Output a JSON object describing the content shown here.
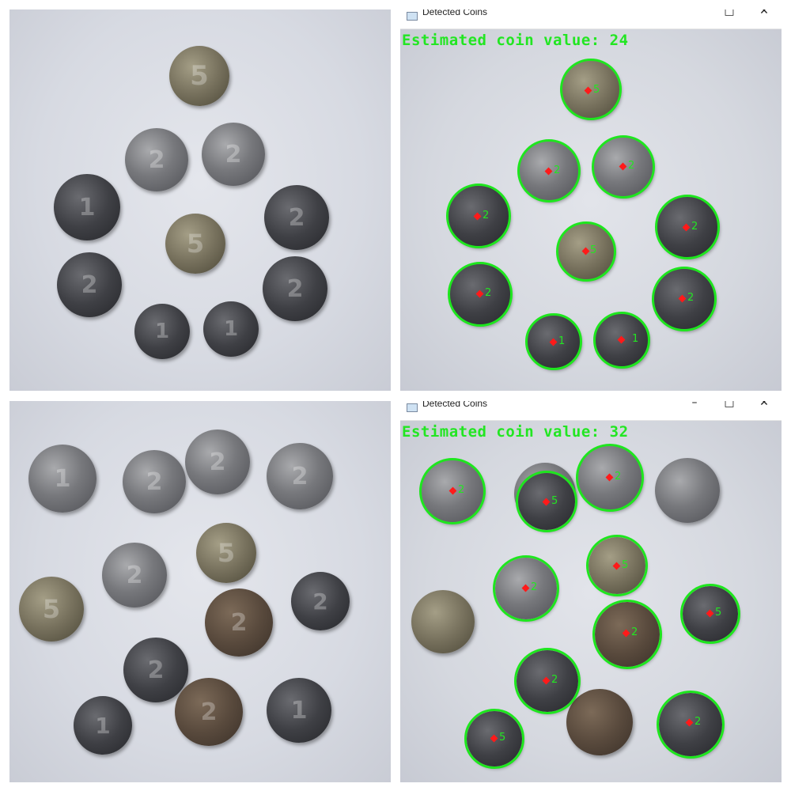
{
  "panels": {
    "top_right": {
      "window_title": "Detected Coins",
      "minimize_glyph": "□",
      "close_glyph": "✕",
      "estimate_text": "Estimated coin value: 24",
      "labels": [
        "5",
        "2",
        "2",
        "2",
        "2",
        "5",
        "2",
        "2",
        "1",
        "1"
      ]
    },
    "bottom_right": {
      "window_title": "Detected Coins",
      "minimize_glyph": "–",
      "maximize_glyph": "□",
      "close_glyph": "✕",
      "estimate_text": "Estimated coin value: 32",
      "labels": [
        "2",
        "5",
        "2",
        "5",
        "2",
        "5",
        "2",
        "2",
        "5",
        "2"
      ]
    }
  },
  "coin_faces": {
    "top_left": [
      "5",
      "2",
      "2",
      "1",
      "2",
      "5",
      "2",
      "2",
      "1",
      "1"
    ],
    "bottom_left": [
      "1",
      "2",
      "2",
      "2",
      "2",
      "5",
      "5",
      "2",
      "2",
      "2",
      "1",
      "2",
      "1"
    ]
  },
  "colors": {
    "detection_ring": "#1ee61e",
    "detection_text": "#22e622",
    "center_marker": "#ff1a1a"
  }
}
